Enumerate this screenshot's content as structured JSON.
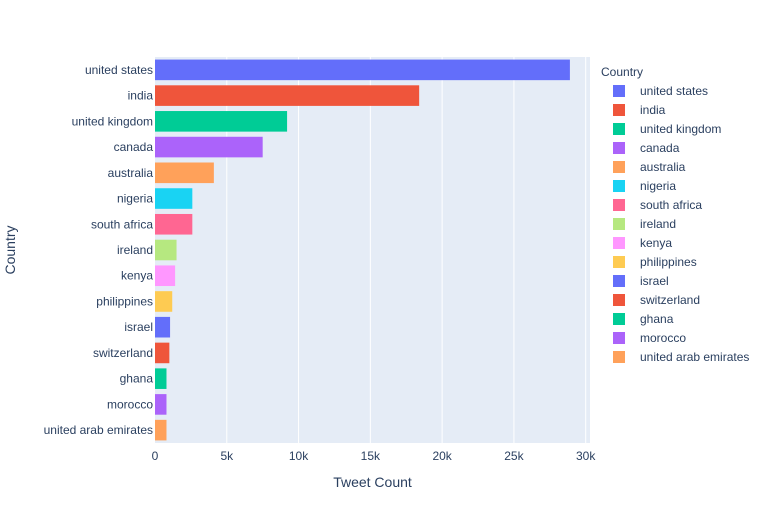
{
  "chart_data": {
    "type": "bar",
    "orientation": "horizontal",
    "categories": [
      "united states",
      "india",
      "united kingdom",
      "canada",
      "australia",
      "nigeria",
      "south africa",
      "ireland",
      "kenya",
      "philippines",
      "israel",
      "switzerland",
      "ghana",
      "morocco",
      "united arab emirates"
    ],
    "values": [
      28900,
      18400,
      9200,
      7500,
      4100,
      2600,
      2600,
      1500,
      1400,
      1200,
      1050,
      1000,
      800,
      800,
      800
    ],
    "colors": [
      "#636efa",
      "#EF553B",
      "#00cc96",
      "#ab63fa",
      "#FFA15A",
      "#19d3f3",
      "#FF6692",
      "#B6E880",
      "#FF97FF",
      "#FECB52",
      "#636efa",
      "#EF553B",
      "#00cc96",
      "#ab63fa",
      "#FFA15A"
    ],
    "xlabel": "Tweet Count",
    "ylabel": "Country",
    "xlim": [
      0,
      30300
    ],
    "x_ticks": [
      0,
      5000,
      10000,
      15000,
      20000,
      25000,
      30000
    ],
    "x_tick_labels": [
      "0",
      "5k",
      "10k",
      "15k",
      "20k",
      "25k",
      "30k"
    ],
    "legend_title": "Country",
    "legend_position": "right",
    "grid": true
  }
}
